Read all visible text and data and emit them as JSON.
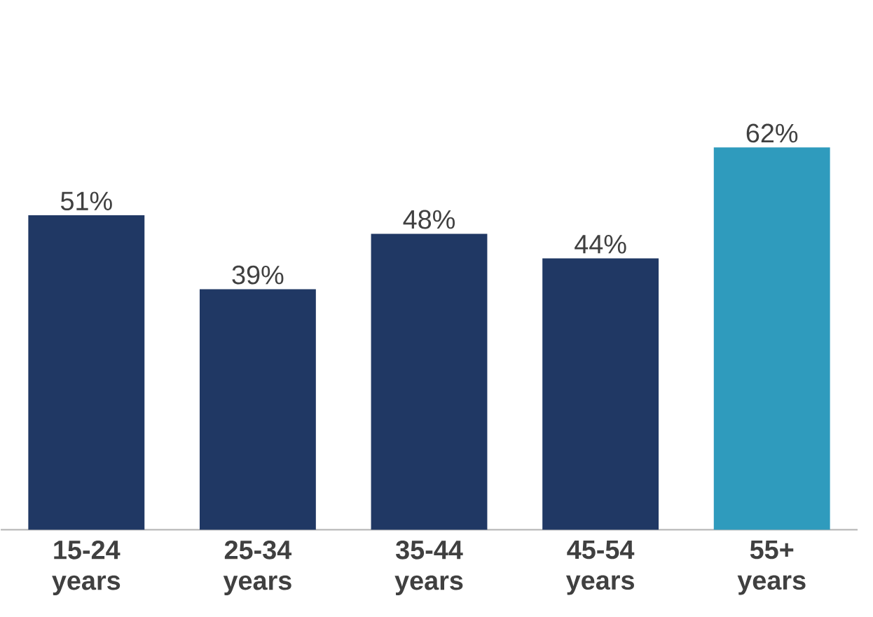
{
  "chart_data": {
    "type": "bar",
    "categories": [
      "15-24 years",
      "25-34 years",
      "35-44 years",
      "45-54 years",
      "55+ years"
    ],
    "values": [
      51,
      39,
      48,
      44,
      62
    ],
    "value_labels": [
      "51%",
      "39%",
      "48%",
      "44%",
      "62%"
    ],
    "colors": [
      "#203864",
      "#203864",
      "#203864",
      "#203864",
      "#2f9bbd"
    ]
  }
}
